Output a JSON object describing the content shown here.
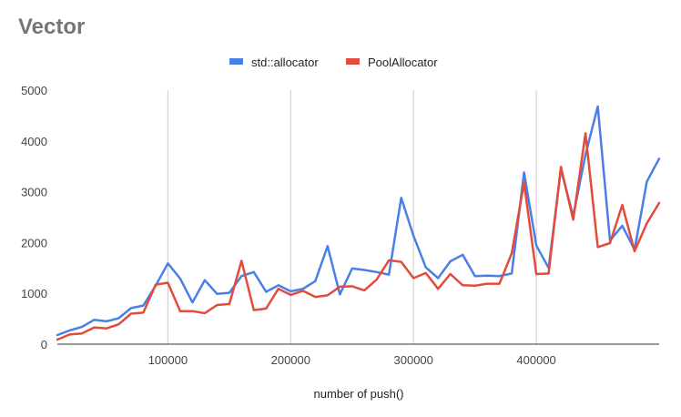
{
  "chart_data": {
    "type": "line",
    "title": "Vector",
    "xlabel": "number of push()",
    "ylabel": "",
    "xlim": [
      10000,
      500000
    ],
    "ylim": [
      0,
      5000
    ],
    "x_ticks": [
      100000,
      200000,
      300000,
      400000
    ],
    "x_tick_labels": [
      "100000",
      "200000",
      "300000",
      "400000"
    ],
    "y_ticks": [
      0,
      1000,
      2000,
      3000,
      4000,
      5000
    ],
    "y_tick_labels": [
      "0",
      "1000",
      "2000",
      "3000",
      "4000",
      "5000"
    ],
    "grid": "vertical",
    "legend_position": "top",
    "x": [
      10000,
      20000,
      30000,
      40000,
      50000,
      60000,
      70000,
      80000,
      90000,
      100000,
      110000,
      120000,
      130000,
      140000,
      150000,
      160000,
      170000,
      180000,
      190000,
      200000,
      210000,
      220000,
      230000,
      240000,
      250000,
      260000,
      270000,
      280000,
      290000,
      300000,
      310000,
      320000,
      330000,
      340000,
      350000,
      360000,
      370000,
      380000,
      390000,
      400000,
      410000,
      420000,
      430000,
      440000,
      450000,
      460000,
      470000,
      480000,
      490000,
      500000
    ],
    "series": [
      {
        "name": "std::allocator",
        "color": "#4a7fe6",
        "values": [
          180,
          270,
          340,
          480,
          450,
          510,
          710,
          760,
          1150,
          1590,
          1290,
          820,
          1260,
          990,
          1010,
          1340,
          1420,
          1030,
          1160,
          1040,
          1090,
          1240,
          1930,
          980,
          1490,
          1460,
          1420,
          1370,
          2880,
          2130,
          1510,
          1300,
          1630,
          1760,
          1340,
          1350,
          1340,
          1390,
          3380,
          1940,
          1500,
          3440,
          2520,
          3730,
          4680,
          2040,
          2330,
          1860,
          3200,
          3650
        ]
      },
      {
        "name": "PoolAllocator",
        "color": "#e34b3c",
        "values": [
          90,
          190,
          210,
          330,
          310,
          390,
          600,
          620,
          1170,
          1210,
          650,
          650,
          610,
          770,
          790,
          1640,
          670,
          700,
          1090,
          970,
          1050,
          930,
          960,
          1130,
          1140,
          1060,
          1270,
          1650,
          1620,
          1300,
          1400,
          1090,
          1380,
          1160,
          1150,
          1190,
          1190,
          1790,
          3180,
          1380,
          1390,
          3490,
          2450,
          4150,
          1910,
          1990,
          2740,
          1830,
          2380,
          2780
        ]
      }
    ]
  }
}
